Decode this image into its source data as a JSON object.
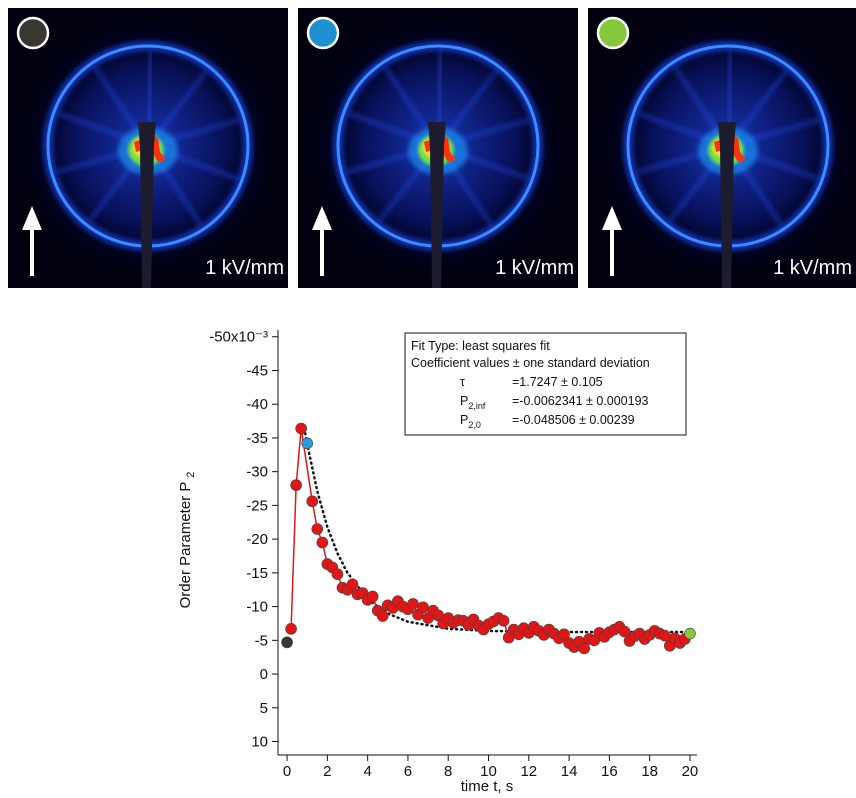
{
  "panels": [
    {
      "label": "1 kV/mm",
      "marker_color": "#3a3632"
    },
    {
      "label": "1 kV/mm",
      "marker_color": "#1e8fd0"
    },
    {
      "label": "1 kV/mm",
      "marker_color": "#86c83c"
    }
  ],
  "chart_data": {
    "type": "scatter",
    "xlabel": "time t, s",
    "ylabel": "Order Parameter P",
    "ylabel_sub": "2",
    "xlim": [
      -0.45,
      20.35
    ],
    "ylim": [
      12,
      -51
    ],
    "xticks": [
      0,
      2,
      4,
      6,
      8,
      10,
      12,
      14,
      16,
      18,
      20
    ],
    "yticks": [
      {
        "value": -50,
        "label": "-50x10⁻³"
      },
      -45,
      -40,
      -35,
      -30,
      -25,
      -20,
      -15,
      -10,
      -5,
      0,
      5,
      10
    ],
    "series": [
      {
        "color": "#e31515",
        "line": true,
        "x": [
          0.2,
          0.45,
          0.7,
          1.25,
          1.5,
          1.75,
          2,
          2.25,
          2.5,
          2.75,
          3,
          3.25,
          3.5,
          3.75,
          4,
          4.25,
          4.5,
          4.75,
          5,
          5.25,
          5.5,
          5.75,
          6,
          6.25,
          6.5,
          6.75,
          7,
          7.25,
          7.5,
          7.75,
          8,
          8.25,
          8.5,
          8.75,
          9,
          9.25,
          9.5,
          9.75,
          10,
          10.25,
          10.5,
          10.75,
          11,
          11.25,
          11.5,
          11.75,
          12,
          12.25,
          12.5,
          12.75,
          13,
          13.25,
          13.5,
          13.75,
          14,
          14.25,
          14.5,
          14.75,
          15,
          15.25,
          15.5,
          15.75,
          16,
          16.25,
          16.5,
          16.75,
          17,
          17.25,
          17.5,
          17.75,
          18,
          18.25,
          18.5,
          18.75,
          19,
          19.25,
          19.5,
          19.75
        ],
        "values": [
          -6.7,
          -28,
          -36.4,
          -25.6,
          -21.5,
          -19.5,
          -16.3,
          -15.8,
          -14.8,
          -12.8,
          -12.5,
          -13.3,
          -11.8,
          -12.0,
          -11.0,
          -11.5,
          -9.4,
          -8.6,
          -10.2,
          -9.8,
          -10.8,
          -10.0,
          -9.6,
          -10.4,
          -8.8,
          -9.9,
          -8.3,
          -9.4,
          -8.7,
          -7.5,
          -8.3,
          -7.6,
          -8.0,
          -7.9,
          -7.3,
          -8.1,
          -7.2,
          -6.6,
          -7.4,
          -7.8,
          -8.3,
          -7.9,
          -5.4,
          -6.6,
          -5.9,
          -6.8,
          -6.1,
          -7.0,
          -6.4,
          -5.8,
          -6.6,
          -6.0,
          -5.3,
          -5.9,
          -4.6,
          -4.0,
          -4.8,
          -3.8,
          -5.2,
          -5.0,
          -6.1,
          -5.5,
          -6.2,
          -6.6,
          -7.0,
          -6.3,
          -4.9,
          -5.6,
          -6.0,
          -5.2,
          -5.8,
          -6.4,
          -6.0,
          -5.7,
          -4.2,
          -5.3,
          -4.6,
          -5.2
        ]
      },
      {
        "color": "#3a3632",
        "line": false,
        "x": [
          0
        ],
        "values": [
          -4.7
        ]
      },
      {
        "color": "#2a9ad8",
        "line": false,
        "x": [
          1
        ],
        "values": [
          -34.2
        ]
      },
      {
        "color": "#8cc63f",
        "line": false,
        "x": [
          20
        ],
        "values": [
          -6
        ]
      }
    ],
    "fit": {
      "color": "#111111",
      "x": [
        0.9,
        1,
        1.5,
        2,
        2.5,
        3,
        4,
        5,
        6,
        8,
        10,
        14,
        20
      ],
      "values": [
        -35.7,
        -34.1,
        -27.1,
        -21.8,
        -17.9,
        -15.0,
        -11.1,
        -8.97,
        -7.76,
        -6.71,
        -6.38,
        -6.24,
        -6.23
      ]
    },
    "fit_box": {
      "line1": "Fit Type: least squares fit",
      "line2": "Coefficient values ± one standard deviation",
      "rows": [
        {
          "symbol": "τ",
          "sub": null,
          "value": "=1.7247 ± 0.105"
        },
        {
          "symbol": "P",
          "sub": "2,inf",
          "value": "=-0.0062341 ± 0.000193"
        },
        {
          "symbol": "P",
          "sub": "2,0",
          "value": "=-0.048506 ± 0.00239"
        }
      ]
    }
  }
}
